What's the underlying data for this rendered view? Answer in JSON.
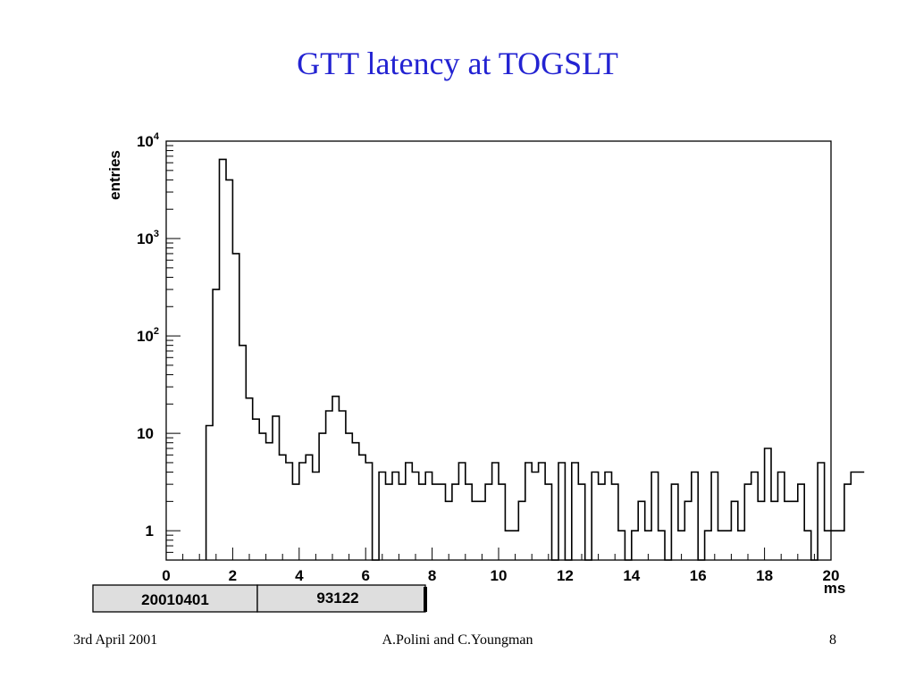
{
  "slide": {
    "title": "GTT latency at TOGSLT",
    "footer_left": "3rd April 2001",
    "footer_center": "A.Polini and C.Youngman",
    "footer_right": "8"
  },
  "stats_box": {
    "run": "20010401",
    "events": "93122"
  },
  "chart_data": {
    "type": "histogram",
    "ylabel": "entries",
    "xlabel": "ms",
    "xlim": [
      0,
      20
    ],
    "ylim": [
      0.5,
      10000
    ],
    "log_y": true,
    "grid": false,
    "x_ticks": [
      0,
      2,
      4,
      6,
      8,
      10,
      12,
      14,
      16,
      18,
      20
    ],
    "y_ticks": [
      {
        "value": 1,
        "label": "1"
      },
      {
        "value": 10,
        "label": "10"
      },
      {
        "value": 100,
        "label": "10",
        "sup": "2"
      },
      {
        "value": 1000,
        "label": "10",
        "sup": "3"
      },
      {
        "value": 10000,
        "label": "10",
        "sup": "4"
      }
    ],
    "bin_width": 0.2,
    "bin_start": 1.2,
    "counts": [
      12,
      300,
      6500,
      4000,
      700,
      80,
      23,
      14,
      10,
      8,
      15,
      6,
      5,
      3,
      5,
      6,
      4,
      10,
      17,
      24,
      17,
      10,
      8,
      6,
      5,
      0,
      4,
      3,
      4,
      3,
      5,
      4,
      3,
      4,
      3,
      3,
      2,
      3,
      5,
      3,
      2,
      2,
      3,
      5,
      3,
      1,
      1,
      2,
      5,
      4,
      5,
      3,
      0,
      5,
      0,
      5,
      3,
      0,
      4,
      3,
      4,
      3,
      1,
      0,
      1,
      2,
      1,
      4,
      1,
      0,
      3,
      1,
      2,
      4,
      0,
      1,
      4,
      1,
      1,
      2,
      1,
      3,
      4,
      2,
      7,
      2,
      4,
      2,
      2,
      3,
      1,
      0,
      5,
      1,
      1,
      1,
      3,
      4,
      4
    ]
  }
}
